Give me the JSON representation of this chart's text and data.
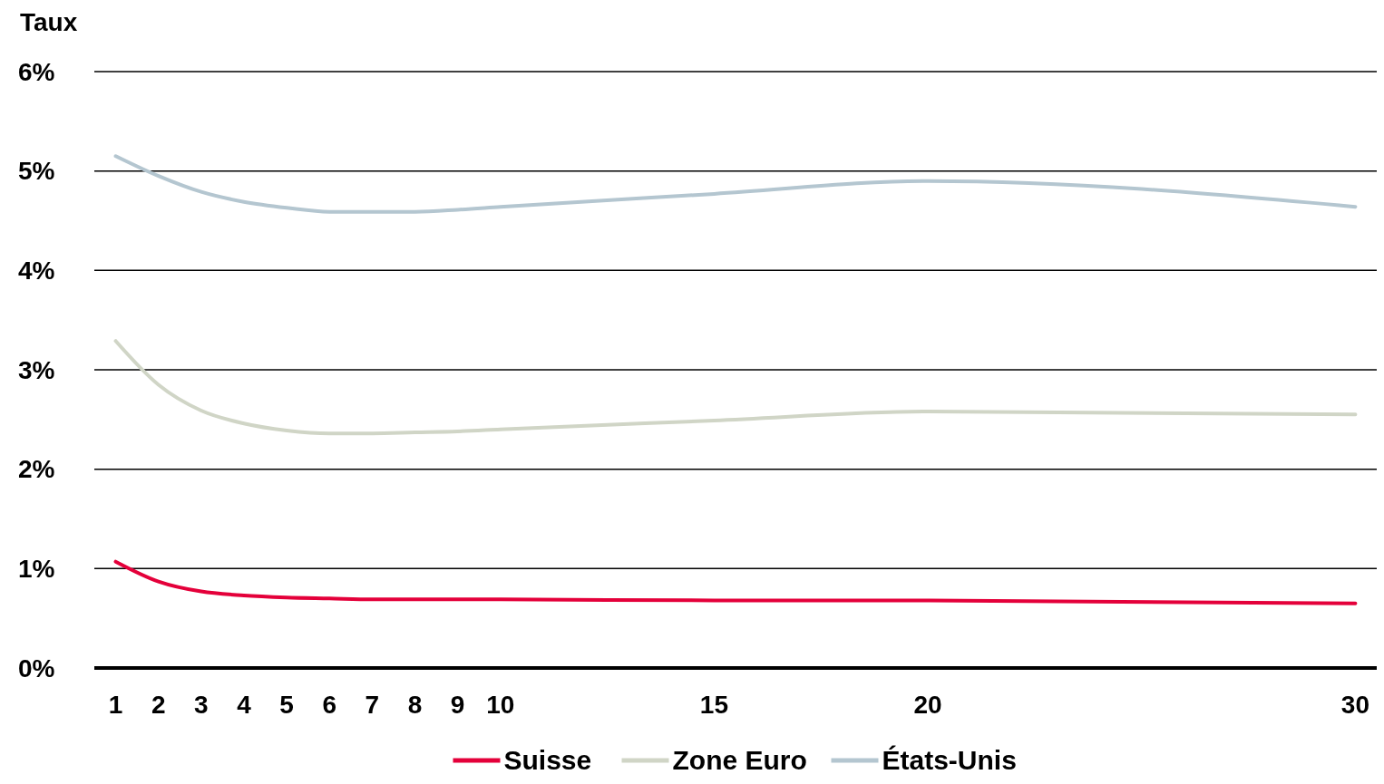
{
  "chart_data": {
    "type": "line",
    "ylabel": "Taux",
    "x": [
      1,
      2,
      3,
      4,
      5,
      6,
      7,
      8,
      9,
      10,
      15,
      20,
      30
    ],
    "xlim": [
      0.5,
      30.5
    ],
    "xticks": [
      1,
      2,
      3,
      4,
      5,
      6,
      7,
      8,
      9,
      10,
      15,
      20,
      30
    ],
    "ylim": [
      0,
      6
    ],
    "yticks": [
      {
        "value": 0,
        "label": "0%"
      },
      {
        "value": 1,
        "label": "1%"
      },
      {
        "value": 2,
        "label": "2%"
      },
      {
        "value": 3,
        "label": "3%"
      },
      {
        "value": 4,
        "label": "4%"
      },
      {
        "value": 5,
        "label": "5%"
      },
      {
        "value": 6,
        "label": "6%"
      }
    ],
    "grid": "y",
    "legend": "bottom",
    "marker": "none",
    "line_style": "solid",
    "series": [
      {
        "name": "Suisse",
        "color": "#e4003a",
        "values": [
          1.07,
          0.87,
          0.77,
          0.73,
          0.71,
          0.7,
          0.69,
          0.69,
          0.69,
          0.69,
          0.68,
          0.68,
          0.65
        ]
      },
      {
        "name": "Zone Euro",
        "color": "#d0d5c6",
        "values": [
          3.29,
          2.85,
          2.59,
          2.46,
          2.39,
          2.36,
          2.36,
          2.37,
          2.38,
          2.4,
          2.49,
          2.58,
          2.55
        ]
      },
      {
        "name": "États-Unis",
        "color": "#b4c6d0",
        "values": [
          5.15,
          4.95,
          4.79,
          4.69,
          4.63,
          4.59,
          4.59,
          4.59,
          4.61,
          4.64,
          4.77,
          4.9,
          4.64
        ]
      }
    ]
  }
}
